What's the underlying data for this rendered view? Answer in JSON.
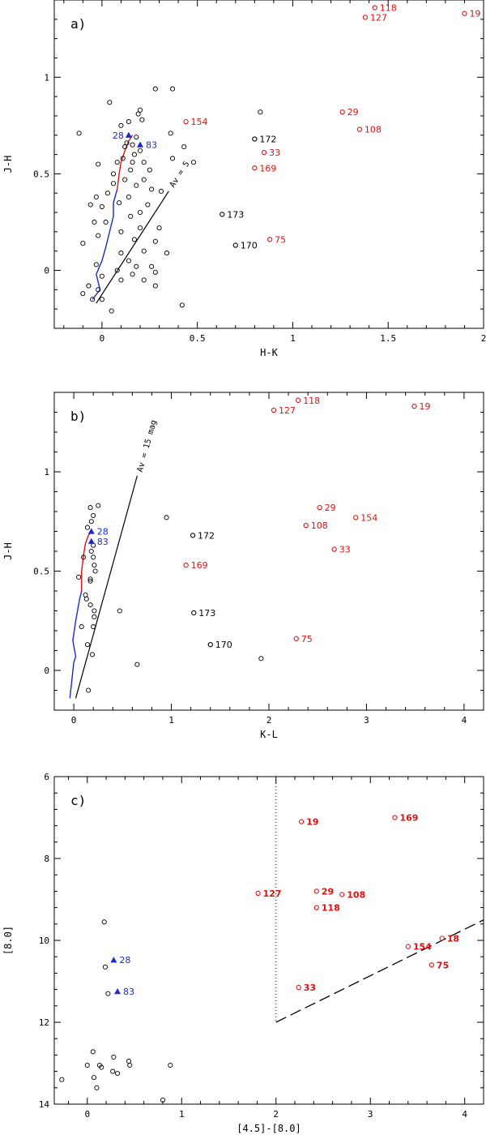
{
  "colors": {
    "red": "#dd1111",
    "blue": "#1a2acc",
    "black": "#000000"
  },
  "chart_data": [
    {
      "type": "scatter",
      "panel_label": "a)",
      "xlabel": "H-K",
      "ylabel": "J-H",
      "xlim": [
        -0.25,
        2.0
      ],
      "ylim": [
        -0.3,
        1.4
      ],
      "invert_y": false,
      "xticks": [
        0,
        0.5,
        1,
        1.5,
        2
      ],
      "xticklabels": [
        "0",
        "0.5",
        "1",
        "1.5",
        "2"
      ],
      "yticks": [
        0,
        0.5,
        1
      ],
      "yticklabels": [
        "0",
        "0.5",
        "1"
      ],
      "unlabeled_points": [
        [
          -0.12,
          0.71
        ],
        [
          0.04,
          0.87
        ],
        [
          0.1,
          0.75
        ],
        [
          0.14,
          0.77
        ],
        [
          0.19,
          0.81
        ],
        [
          0.2,
          0.83
        ],
        [
          0.21,
          0.78
        ],
        [
          0.28,
          0.94
        ],
        [
          0.37,
          0.94
        ],
        [
          0.36,
          0.71
        ],
        [
          0.37,
          0.58
        ],
        [
          0.43,
          0.64
        ],
        [
          0.48,
          0.56
        ],
        [
          0.83,
          0.82
        ],
        [
          0.31,
          0.41
        ],
        [
          0.34,
          0.09
        ],
        [
          0.42,
          -0.18
        ],
        [
          0.28,
          -0.01
        ],
        [
          0.28,
          -0.08
        ],
        [
          0.22,
          -0.05
        ],
        [
          0.16,
          -0.02
        ],
        [
          0.1,
          -0.05
        ],
        [
          0.05,
          -0.21
        ],
        [
          0.0,
          -0.15
        ],
        [
          -0.05,
          -0.15
        ],
        [
          -0.1,
          -0.12
        ],
        [
          -0.07,
          -0.08
        ],
        [
          -0.02,
          -0.1
        ],
        [
          0.0,
          -0.03
        ],
        [
          -0.03,
          0.03
        ],
        [
          -0.02,
          0.18
        ],
        [
          -0.1,
          0.14
        ],
        [
          0.02,
          0.25
        ],
        [
          0.0,
          0.33
        ],
        [
          -0.03,
          0.38
        ],
        [
          -0.06,
          0.34
        ],
        [
          -0.02,
          0.55
        ],
        [
          0.06,
          0.5
        ],
        [
          0.08,
          0.56
        ],
        [
          0.12,
          0.64
        ],
        [
          0.18,
          0.69
        ],
        [
          0.2,
          0.62
        ],
        [
          0.22,
          0.56
        ],
        [
          0.25,
          0.52
        ],
        [
          0.22,
          0.47
        ],
        [
          0.26,
          0.42
        ],
        [
          0.18,
          0.44
        ],
        [
          0.14,
          0.38
        ],
        [
          0.15,
          0.28
        ],
        [
          0.2,
          0.3
        ],
        [
          0.24,
          0.34
        ],
        [
          0.2,
          0.22
        ],
        [
          0.17,
          0.16
        ],
        [
          0.22,
          0.1
        ],
        [
          0.28,
          0.15
        ],
        [
          0.3,
          0.22
        ],
        [
          0.1,
          0.2
        ],
        [
          0.1,
          0.09
        ],
        [
          0.14,
          0.05
        ],
        [
          0.18,
          0.02
        ],
        [
          0.08,
          0.0
        ],
        [
          0.26,
          0.02
        ],
        [
          0.06,
          0.45
        ],
        [
          0.09,
          0.35
        ],
        [
          0.03,
          0.4
        ],
        [
          -0.04,
          0.25
        ],
        [
          0.15,
          0.52
        ],
        [
          0.16,
          0.56
        ],
        [
          0.17,
          0.6
        ],
        [
          0.13,
          0.66
        ],
        [
          0.16,
          0.65
        ],
        [
          0.11,
          0.58
        ],
        [
          0.12,
          0.47
        ]
      ],
      "labeled_points": [
        {
          "label": "118",
          "x": 1.43,
          "y": 1.36,
          "color": "red"
        },
        {
          "label": "127",
          "x": 1.38,
          "y": 1.31,
          "color": "red"
        },
        {
          "label": "19",
          "x": 1.9,
          "y": 1.33,
          "color": "red"
        },
        {
          "label": "154",
          "x": 0.44,
          "y": 0.77,
          "color": "red"
        },
        {
          "label": "29",
          "x": 1.26,
          "y": 0.82,
          "color": "red"
        },
        {
          "label": "108",
          "x": 1.35,
          "y": 0.73,
          "color": "red"
        },
        {
          "label": "172",
          "x": 0.8,
          "y": 0.68,
          "color": "black"
        },
        {
          "label": "33",
          "x": 0.85,
          "y": 0.61,
          "color": "red"
        },
        {
          "label": "169",
          "x": 0.8,
          "y": 0.53,
          "color": "red"
        },
        {
          "label": "173",
          "x": 0.63,
          "y": 0.29,
          "color": "black"
        },
        {
          "label": "170",
          "x": 0.7,
          "y": 0.13,
          "color": "black"
        },
        {
          "label": "75",
          "x": 0.88,
          "y": 0.16,
          "color": "red"
        }
      ],
      "triangles": [
        {
          "label": "28",
          "x": 0.14,
          "y": 0.7,
          "label_side": "left"
        },
        {
          "label": "83",
          "x": 0.2,
          "y": 0.65,
          "label_side": "right"
        }
      ],
      "sequences": {
        "blue": [
          [
            -0.05,
            -0.15
          ],
          [
            -0.01,
            -0.1
          ],
          [
            -0.03,
            -0.02
          ],
          [
            0.0,
            0.05
          ],
          [
            0.02,
            0.12
          ],
          [
            0.04,
            0.2
          ],
          [
            0.06,
            0.28
          ],
          [
            0.06,
            0.35
          ],
          [
            0.08,
            0.42
          ]
        ],
        "red": [
          [
            0.08,
            0.42
          ],
          [
            0.09,
            0.5
          ],
          [
            0.1,
            0.56
          ],
          [
            0.12,
            0.62
          ],
          [
            0.14,
            0.67
          ],
          [
            0.16,
            0.7
          ]
        ]
      },
      "reddening_vector": {
        "x0": -0.03,
        "y0": -0.17,
        "x1": 0.35,
        "y1": 0.41
      },
      "reddening_label": "Av = 5"
    },
    {
      "type": "scatter",
      "panel_label": "b)",
      "xlabel": "K-L",
      "ylabel": "J-H",
      "xlim": [
        -0.2,
        4.2
      ],
      "ylim": [
        -0.2,
        1.4
      ],
      "invert_y": false,
      "xticks": [
        0,
        1,
        2,
        3,
        4
      ],
      "xticklabels": [
        "0",
        "1",
        "2",
        "3",
        "4"
      ],
      "yticks": [
        0,
        0.5,
        1
      ],
      "yticklabels": [
        "0",
        "0.5",
        "1"
      ],
      "unlabeled_points": [
        [
          0.25,
          0.83
        ],
        [
          0.17,
          0.82
        ],
        [
          0.2,
          0.78
        ],
        [
          0.14,
          0.72
        ],
        [
          0.18,
          0.75
        ],
        [
          0.95,
          0.77
        ],
        [
          0.1,
          0.57
        ],
        [
          0.21,
          0.53
        ],
        [
          0.22,
          0.5
        ],
        [
          0.05,
          0.47
        ],
        [
          0.17,
          0.46
        ],
        [
          0.17,
          0.45
        ],
        [
          0.12,
          0.38
        ],
        [
          0.13,
          0.36
        ],
        [
          0.17,
          0.33
        ],
        [
          0.21,
          0.3
        ],
        [
          0.21,
          0.27
        ],
        [
          0.47,
          0.3
        ],
        [
          0.2,
          0.22
        ],
        [
          0.08,
          0.22
        ],
        [
          0.14,
          0.13
        ],
        [
          0.19,
          0.08
        ],
        [
          0.65,
          0.03
        ],
        [
          0.15,
          -0.1
        ],
        [
          1.92,
          0.06
        ],
        [
          0.18,
          0.6
        ],
        [
          0.2,
          0.63
        ],
        [
          0.2,
          0.57
        ]
      ],
      "labeled_points": [
        {
          "label": "118",
          "x": 2.3,
          "y": 1.36,
          "color": "red"
        },
        {
          "label": "127",
          "x": 2.05,
          "y": 1.31,
          "color": "red"
        },
        {
          "label": "19",
          "x": 3.49,
          "y": 1.33,
          "color": "red"
        },
        {
          "label": "29",
          "x": 2.52,
          "y": 0.82,
          "color": "red"
        },
        {
          "label": "154",
          "x": 2.89,
          "y": 0.77,
          "color": "red"
        },
        {
          "label": "108",
          "x": 2.38,
          "y": 0.73,
          "color": "red"
        },
        {
          "label": "172",
          "x": 1.22,
          "y": 0.68,
          "color": "black"
        },
        {
          "label": "33",
          "x": 2.67,
          "y": 0.61,
          "color": "red"
        },
        {
          "label": "169",
          "x": 1.15,
          "y": 0.53,
          "color": "red"
        },
        {
          "label": "173",
          "x": 1.23,
          "y": 0.29,
          "color": "black"
        },
        {
          "label": "170",
          "x": 1.4,
          "y": 0.13,
          "color": "black"
        },
        {
          "label": "75",
          "x": 2.28,
          "y": 0.16,
          "color": "red"
        }
      ],
      "triangles": [
        {
          "label": "28",
          "x": 0.18,
          "y": 0.7,
          "label_side": "right"
        },
        {
          "label": "83",
          "x": 0.18,
          "y": 0.65,
          "label_side": "right"
        }
      ],
      "sequences": {
        "blue": [
          [
            -0.04,
            -0.14
          ],
          [
            -0.02,
            -0.05
          ],
          [
            0.0,
            0.04
          ],
          [
            0.02,
            0.07
          ],
          [
            -0.01,
            0.15
          ],
          [
            0.02,
            0.25
          ],
          [
            0.06,
            0.36
          ],
          [
            0.08,
            0.4
          ]
        ],
        "red": [
          [
            0.08,
            0.4
          ],
          [
            0.08,
            0.5
          ],
          [
            0.1,
            0.58
          ],
          [
            0.12,
            0.64
          ],
          [
            0.15,
            0.68
          ],
          [
            0.18,
            0.7
          ]
        ]
      },
      "reddening_vector": {
        "x0": 0.02,
        "y0": -0.14,
        "x1": 0.65,
        "y1": 0.98
      },
      "reddening_label": "Av = 15 mag"
    },
    {
      "type": "scatter",
      "panel_label": "c)",
      "xlabel": "[4.5]-[8.0]",
      "ylabel": "[8.0]",
      "xlim": [
        -0.35,
        4.2
      ],
      "ylim": [
        6,
        14
      ],
      "invert_y": true,
      "xticks": [
        0,
        1,
        2,
        3,
        4
      ],
      "xticklabels": [
        "0",
        "1",
        "2",
        "3",
        "4"
      ],
      "yticks": [
        6,
        8,
        10,
        12,
        14
      ],
      "yticklabels": [
        "6",
        "8",
        "10",
        "12",
        "14"
      ],
      "unlabeled_points": [
        [
          0.18,
          9.55
        ],
        [
          0.19,
          10.65
        ],
        [
          0.22,
          11.3
        ],
        [
          0.06,
          12.72
        ],
        [
          0.28,
          12.85
        ],
        [
          0.44,
          12.95
        ],
        [
          0.45,
          13.05
        ],
        [
          0.0,
          13.05
        ],
        [
          0.15,
          13.1
        ],
        [
          0.27,
          13.2
        ],
        [
          0.32,
          13.25
        ],
        [
          0.07,
          13.35
        ],
        [
          0.88,
          13.05
        ],
        [
          -0.27,
          13.4
        ],
        [
          0.1,
          13.6
        ],
        [
          0.8,
          13.9
        ],
        [
          0.13,
          13.05
        ]
      ],
      "labeled_points": [
        {
          "label": "19",
          "x": 2.27,
          "y": 7.1,
          "color": "red"
        },
        {
          "label": "169",
          "x": 3.26,
          "y": 7.0,
          "color": "red"
        },
        {
          "label": "127",
          "x": 1.81,
          "y": 8.85,
          "color": "red"
        },
        {
          "label": "29",
          "x": 2.43,
          "y": 8.8,
          "color": "red"
        },
        {
          "label": "108",
          "x": 2.7,
          "y": 8.88,
          "color": "red"
        },
        {
          "label": "118",
          "x": 2.43,
          "y": 9.2,
          "color": "red"
        },
        {
          "label": "154",
          "x": 3.4,
          "y": 10.15,
          "color": "red"
        },
        {
          "label": "18",
          "x": 3.76,
          "y": 9.95,
          "color": "red"
        },
        {
          "label": "75",
          "x": 3.65,
          "y": 10.6,
          "color": "red"
        },
        {
          "label": "33",
          "x": 2.24,
          "y": 11.15,
          "color": "red"
        }
      ],
      "triangles": [
        {
          "label": "28",
          "x": 0.28,
          "y": 10.48,
          "label_side": "right"
        },
        {
          "label": "83",
          "x": 0.32,
          "y": 11.25,
          "label_side": "right"
        }
      ],
      "dotted_line": {
        "x": 2.0,
        "y0": 6.0,
        "y1": 12.0
      },
      "dashed_line": {
        "x0": 2.0,
        "y0": 12.0,
        "x1": 4.2,
        "y1": 9.5
      }
    }
  ]
}
